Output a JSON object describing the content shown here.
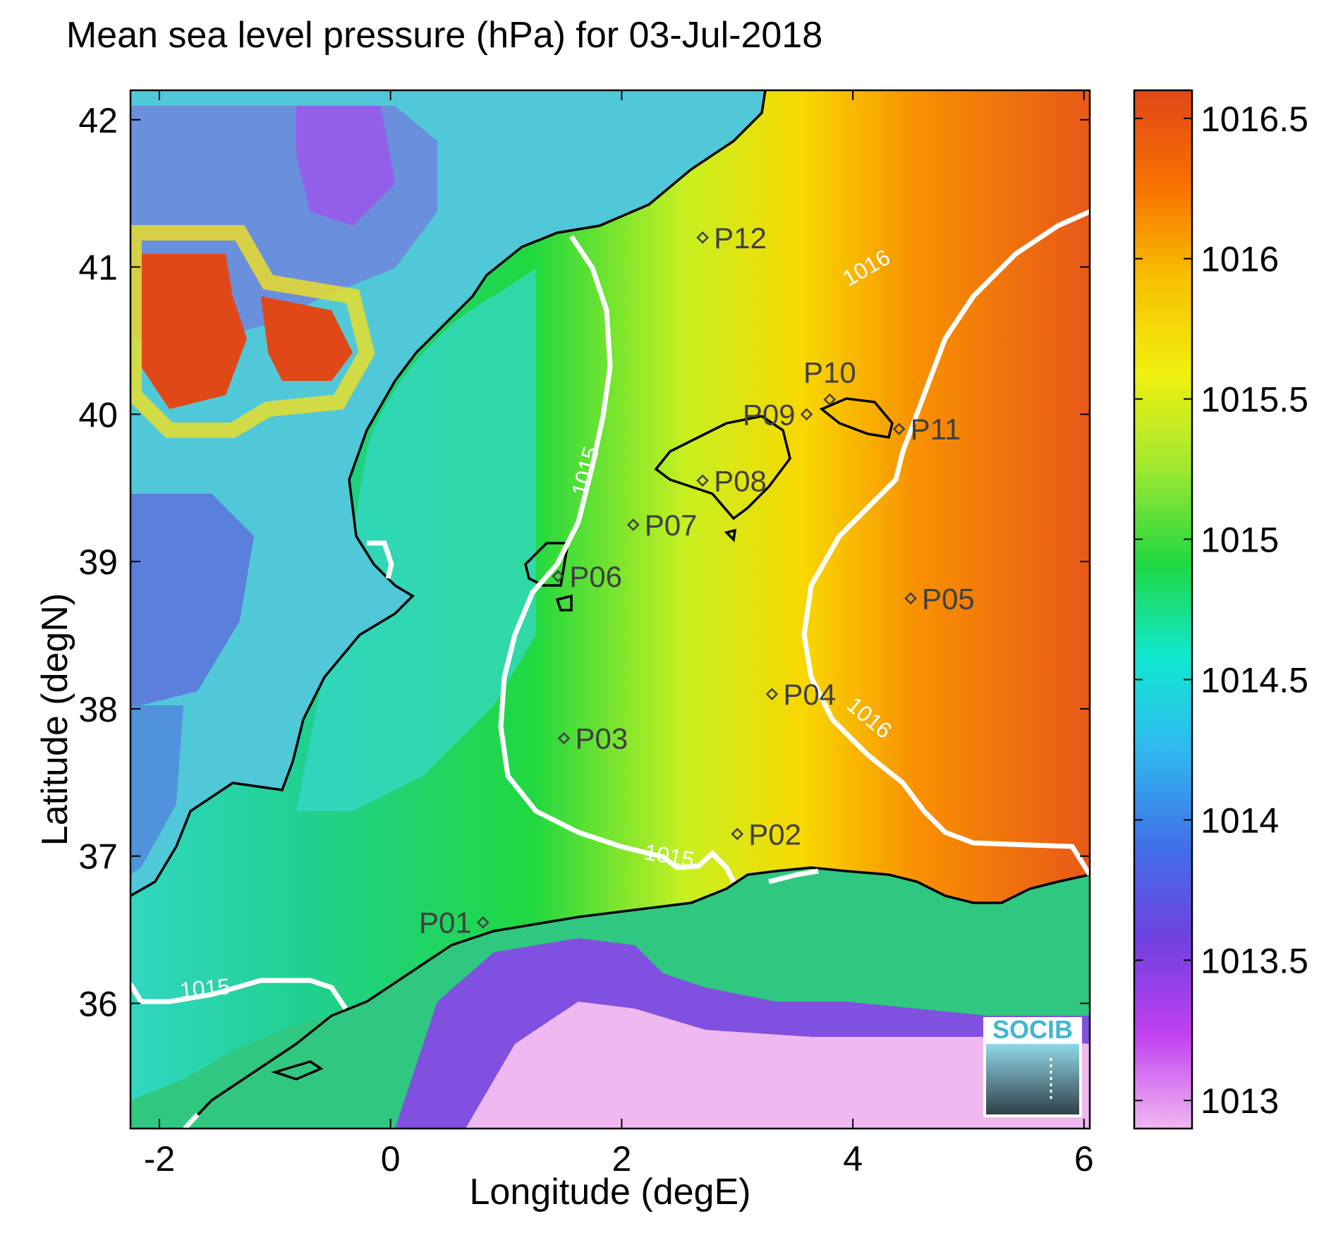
{
  "title": "Mean sea level pressure (hPa) for 03-Jul-2018",
  "xlabel": "Longitude (degE)",
  "ylabel": "Latitude (degN)",
  "x_ticks": [
    "-2",
    "0",
    "2",
    "4",
    "6"
  ],
  "y_ticks": [
    "42",
    "41",
    "40",
    "39",
    "38",
    "37",
    "36"
  ],
  "xlim": [
    -2.25,
    6.05
  ],
  "ylim": [
    35.15,
    42.2
  ],
  "colorbar": {
    "ticks": [
      "1016.5",
      "1016",
      "1015.5",
      "1015",
      "1014.5",
      "1014",
      "1013.5",
      "1013"
    ],
    "range": [
      1012.9,
      1016.6
    ],
    "colors": [
      "#f0b8f0",
      "#c040f0",
      "#7040e0",
      "#4070e8",
      "#30b8f0",
      "#10e8d0",
      "#20d840",
      "#a0e830",
      "#f0f010",
      "#f8c000",
      "#f87000",
      "#e04818"
    ]
  },
  "contour_labels": [
    {
      "text": "1016",
      "lon": 4.15,
      "lat": 40.95
    },
    {
      "text": "1015",
      "lon": 1.75,
      "lat": 39.6
    },
    {
      "text": "1016",
      "lon": 4.1,
      "lat": 37.9
    },
    {
      "text": "1015",
      "lon": 2.4,
      "lat": 36.95
    },
    {
      "text": "1015",
      "lon": -1.6,
      "lat": 36.05
    }
  ],
  "stations": [
    {
      "name": "P01",
      "lon": 0.8,
      "lat": 36.55,
      "label_side": "left"
    },
    {
      "name": "P02",
      "lon": 3.0,
      "lat": 37.15,
      "label_side": "right"
    },
    {
      "name": "P03",
      "lon": 1.5,
      "lat": 37.8,
      "label_side": "right"
    },
    {
      "name": "P04",
      "lon": 3.3,
      "lat": 38.1,
      "label_side": "right"
    },
    {
      "name": "P05",
      "lon": 4.5,
      "lat": 38.75,
      "label_side": "right"
    },
    {
      "name": "P06",
      "lon": 1.45,
      "lat": 38.9,
      "label_side": "right"
    },
    {
      "name": "P07",
      "lon": 2.1,
      "lat": 39.25,
      "label_side": "right"
    },
    {
      "name": "P08",
      "lon": 2.7,
      "lat": 39.55,
      "label_side": "right"
    },
    {
      "name": "P09",
      "lon": 3.6,
      "lat": 40.0,
      "label_side": "left"
    },
    {
      "name": "P10",
      "lon": 3.8,
      "lat": 40.1,
      "label_side": "top"
    },
    {
      "name": "P11",
      "lon": 4.4,
      "lat": 39.9,
      "label_side": "right"
    },
    {
      "name": "P12",
      "lon": 2.7,
      "lat": 41.2,
      "label_side": "right"
    }
  ],
  "logo_text": "SOCIB"
}
